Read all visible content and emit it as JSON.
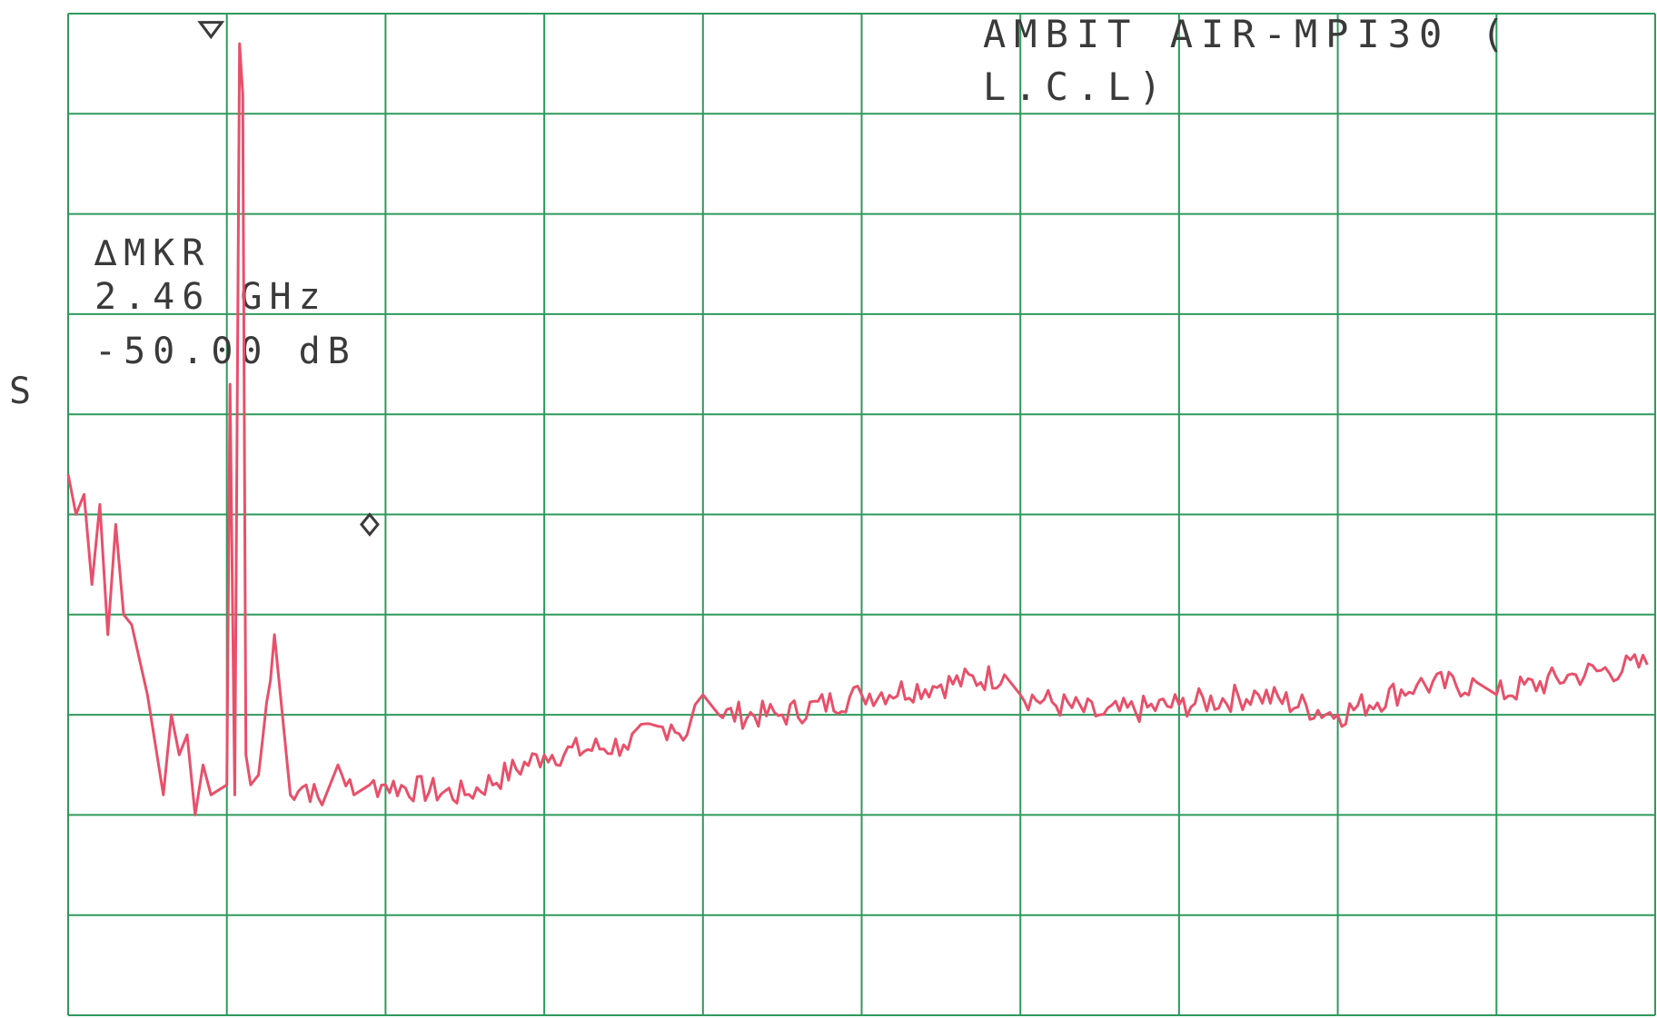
{
  "chart_data": {
    "type": "line",
    "title_lines": [
      "AMBIT AIR-MPI30 (",
      "L.C.L)"
    ],
    "annotation": {
      "header": "∆MKR",
      "frequency": "2.46 GHz",
      "level": "-50.00 dB"
    },
    "side_label": "S",
    "grid": true,
    "grid_color": "#2e9a5c",
    "trace_color": "#e8506a",
    "divisions": {
      "x": 10,
      "y": 10
    },
    "y_unit": "divisions above bottom graticule",
    "series": [
      {
        "x": [
          0.0,
          0.05,
          0.1,
          0.15,
          0.2,
          0.25,
          0.3,
          0.35,
          0.4,
          0.5,
          0.6,
          0.65,
          0.7,
          0.75,
          0.8,
          0.85,
          0.9,
          1.0,
          1.02,
          1.05,
          1.08,
          1.1,
          1.12,
          1.15,
          1.2,
          1.3,
          1.4,
          1.5,
          1.6,
          1.7,
          1.8,
          1.9,
          2.0,
          2.5,
          3.0,
          3.5,
          3.8,
          3.9,
          3.95,
          4.0,
          4.1,
          4.5,
          5.0,
          5.5,
          5.9,
          6.0,
          6.5,
          7.0,
          7.5,
          8.0,
          8.5,
          8.9,
          9.0,
          9.5,
          9.95
        ],
        "y": [
          5.4,
          5.0,
          5.2,
          4.3,
          5.1,
          3.8,
          4.9,
          4.0,
          3.9,
          3.2,
          2.2,
          3.0,
          2.6,
          2.8,
          2.0,
          2.5,
          2.2,
          2.3,
          6.3,
          2.2,
          9.7,
          9.2,
          2.6,
          2.3,
          2.4,
          3.8,
          2.2,
          2.3,
          2.1,
          2.5,
          2.2,
          2.3,
          2.3,
          2.2,
          2.6,
          2.7,
          2.9,
          2.8,
          3.1,
          3.2,
          3.0,
          3.0,
          3.2,
          3.3,
          3.4,
          3.2,
          3.0,
          3.1,
          3.2,
          3.0,
          3.3,
          3.3,
          3.2,
          3.4,
          3.5
        ]
      }
    ],
    "markers": [
      {
        "shape": "triangle-down",
        "x": 0.9,
        "y": 9.75
      },
      {
        "shape": "diamond",
        "x": 1.9,
        "y": 4.8
      }
    ]
  }
}
